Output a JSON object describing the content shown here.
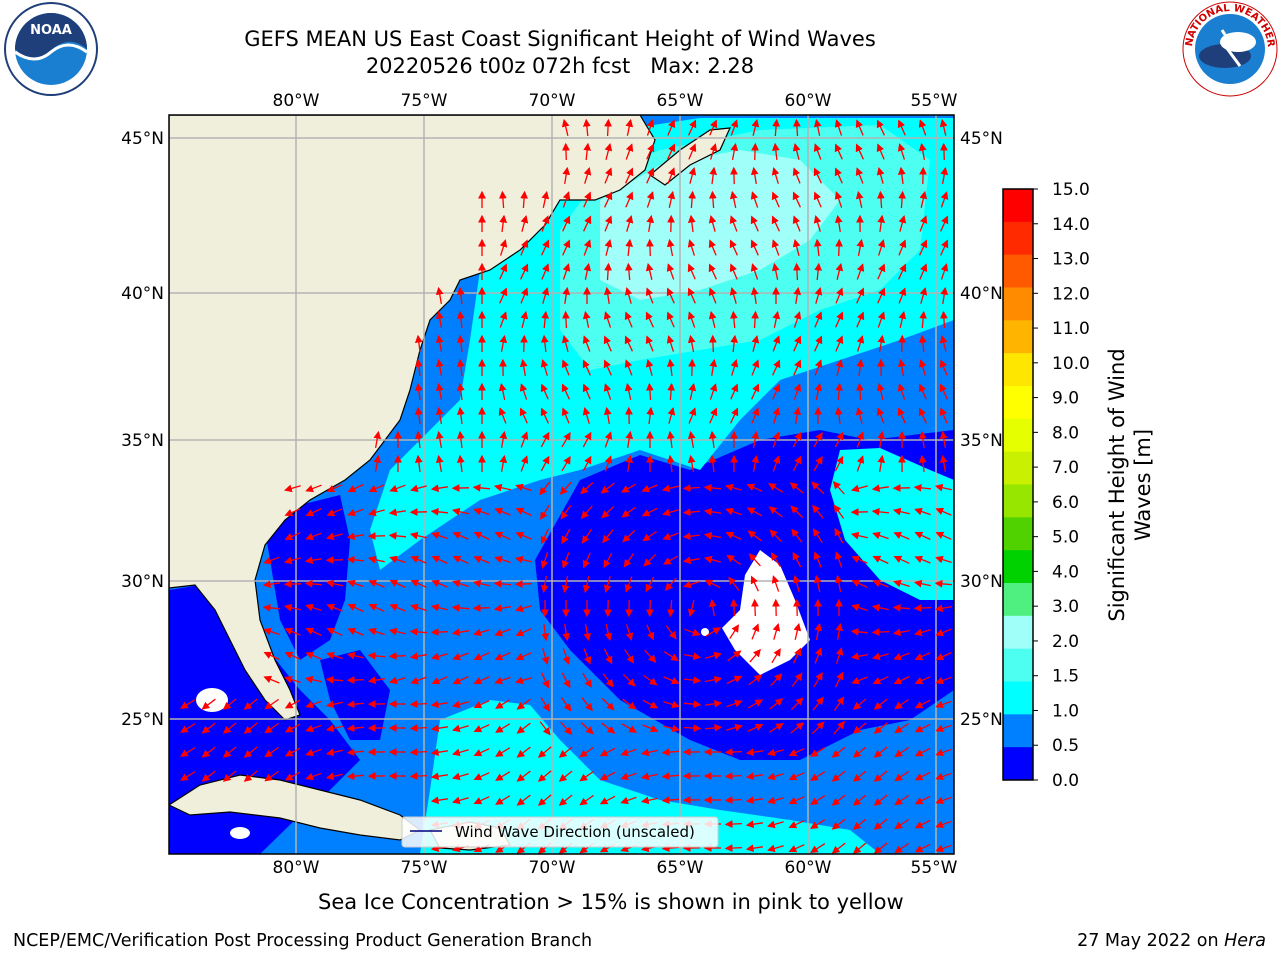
{
  "title": {
    "line1": "GEFS MEAN US East Coast Significant Height of Wind Waves",
    "line2": "20220526 t00z 072h fcst   Max: 2.28"
  },
  "logos": {
    "left": "NOAA",
    "right": "NATIONAL WEATHER SERVICE"
  },
  "map": {
    "lon_ticks": [
      "80°W",
      "75°W",
      "70°W",
      "65°W",
      "60°W",
      "55°W"
    ],
    "lat_ticks": [
      "45°N",
      "40°N",
      "35°N",
      "30°N",
      "25°N"
    ],
    "legend_label": "Wind Wave Direction (unscaled)",
    "colors": {
      "land": "#efefdc",
      "grid": "#b3b3b3",
      "arrow": "#ff0000"
    }
  },
  "colorbar": {
    "label_line1": "Significant Height of Wind",
    "label_line2": "Waves [m]",
    "ticks": [
      "15.0",
      "14.0",
      "13.0",
      "12.0",
      "11.0",
      "10.0",
      "9.0",
      "8.0",
      "7.0",
      "6.0",
      "5.0",
      "4.0",
      "3.0",
      "2.0",
      "1.5",
      "1.0",
      "0.5",
      "0.0"
    ],
    "colors": [
      "#ff0000",
      "#ff2a00",
      "#ff5a00",
      "#ff8c00",
      "#ffb400",
      "#ffe600",
      "#ffff00",
      "#e6ff00",
      "#c8f000",
      "#96e600",
      "#50d200",
      "#00d200",
      "#50f080",
      "#a0fff8",
      "#4dfff0",
      "#00ffff",
      "#0080ff",
      "#0000ff"
    ]
  },
  "note": "Sea Ice Concentration > 15% is shown in pink to yellow",
  "footer": {
    "left": "NCEP/EMC/Verification Post Processing Product Generation Branch",
    "right_date": "27 May 2022 on ",
    "right_machine": "Hera"
  }
}
